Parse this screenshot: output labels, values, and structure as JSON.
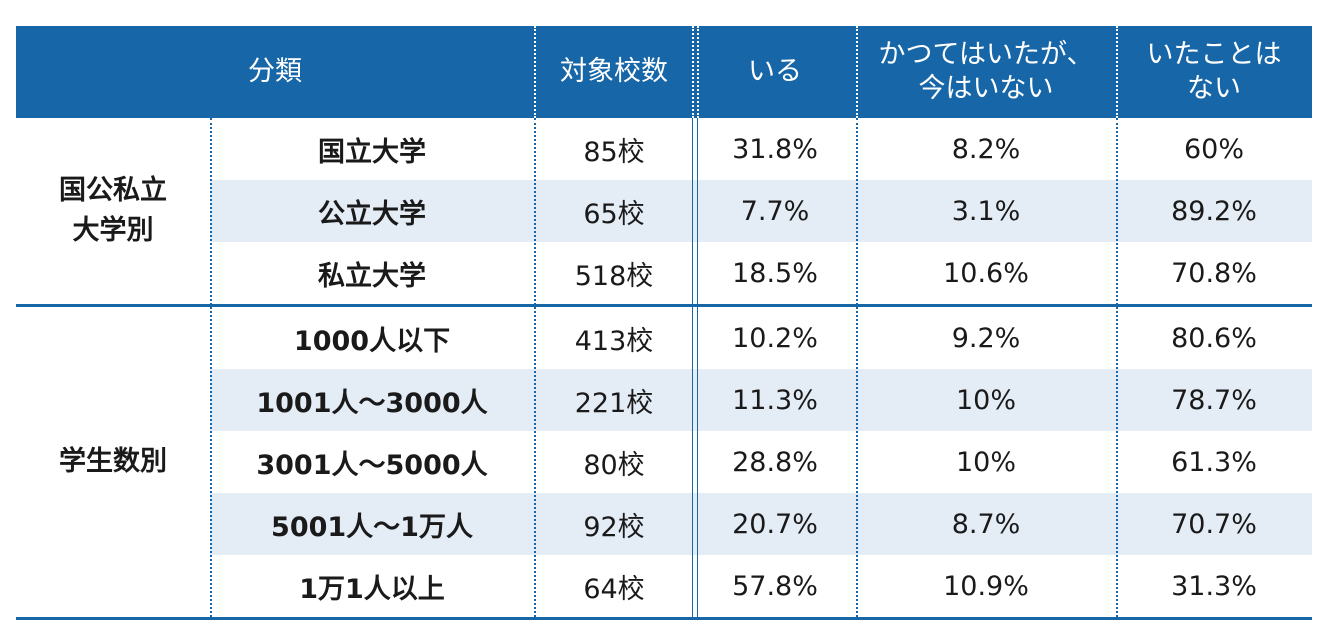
{
  "header": {
    "category": "分類",
    "count": "対象校数",
    "yes": "いる",
    "before_line1": "かつてはいたが、",
    "before_line2": "今はいない",
    "never_line1": "いたことは",
    "never_line2": "ない"
  },
  "groups": {
    "type_line1": "国公私立",
    "type_line2": "大学別",
    "size": "学生数別"
  },
  "rows": [
    {
      "label": "国立大学",
      "count": "85校",
      "yes": "31.8%",
      "before": "8.2%",
      "never": "60%"
    },
    {
      "label": "公立大学",
      "count": "65校",
      "yes": "7.7%",
      "before": "3.1%",
      "never": "89.2%"
    },
    {
      "label": "私立大学",
      "count": "518校",
      "yes": "18.5%",
      "before": "10.6%",
      "never": "70.8%"
    },
    {
      "label": "1000人以下",
      "count": "413校",
      "yes": "10.2%",
      "before": "9.2%",
      "never": "80.6%"
    },
    {
      "label": "1001人～3000人",
      "count": "221校",
      "yes": "11.3%",
      "before": "10%",
      "never": "78.7%"
    },
    {
      "label": "3001人～5000人",
      "count": "80校",
      "yes": "28.8%",
      "before": "10%",
      "never": "61.3%"
    },
    {
      "label": "5001人～1万人",
      "count": "92校",
      "yes": "20.7%",
      "before": "8.7%",
      "never": "70.7%"
    },
    {
      "label": "1万1人以上",
      "count": "64校",
      "yes": "57.8%",
      "before": "10.9%",
      "never": "31.3%"
    }
  ]
}
